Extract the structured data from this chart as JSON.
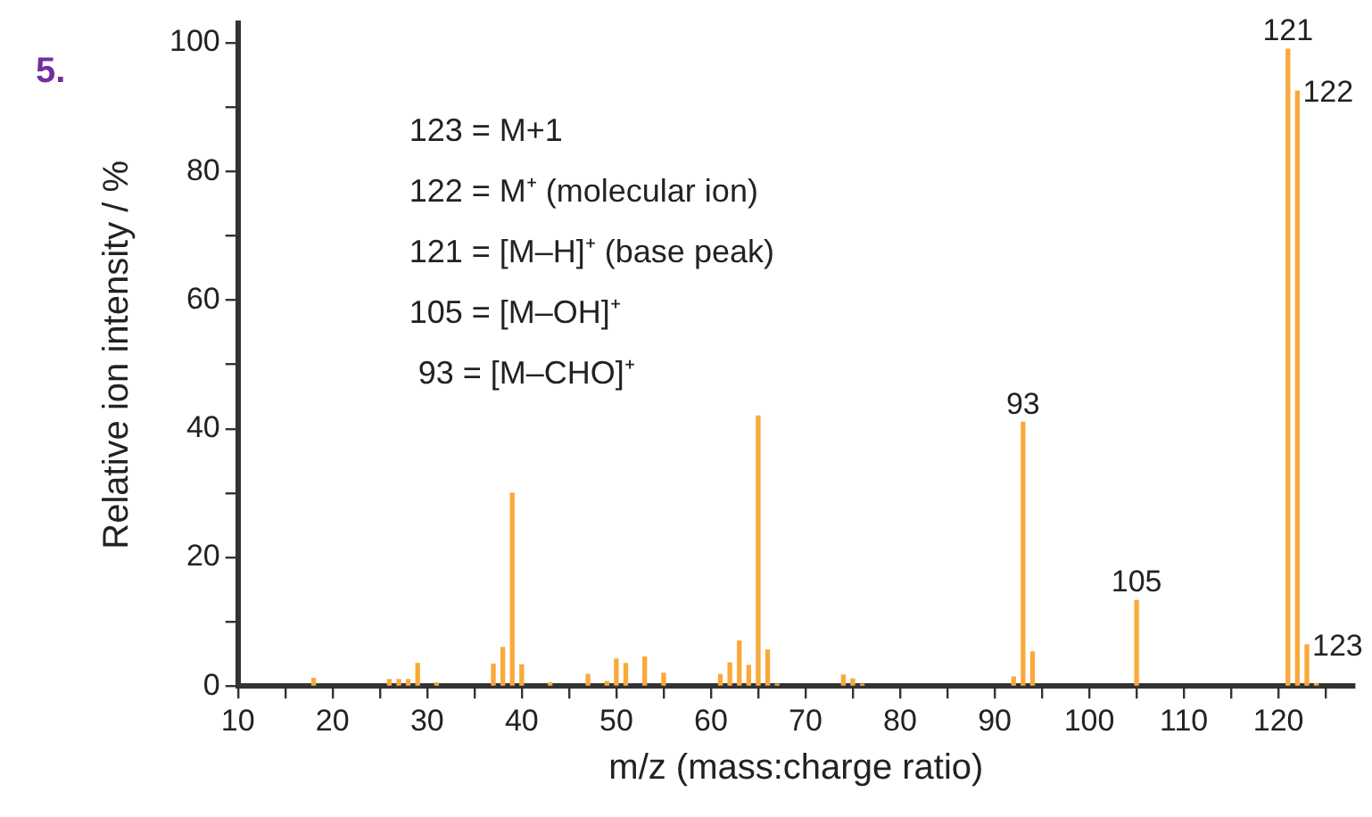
{
  "chart_data": {
    "type": "bar",
    "title": "5.",
    "xlabel": "m/z (mass:charge ratio)",
    "ylabel": "Relative ion intensity / %",
    "x": [
      18,
      26,
      27,
      28,
      29,
      31,
      37,
      38,
      39,
      40,
      43,
      47,
      49,
      50,
      51,
      53,
      55,
      61,
      62,
      63,
      64,
      65,
      66,
      67,
      74,
      75,
      76,
      92,
      93,
      94,
      105,
      121,
      122,
      123,
      124
    ],
    "values": [
      1.2,
      1,
      1,
      1,
      3.5,
      0.5,
      3.4,
      6,
      30,
      3.3,
      0.5,
      1.8,
      0.7,
      4.2,
      3.5,
      4.5,
      2,
      1.8,
      3.6,
      7,
      3.2,
      42,
      5.6,
      0.3,
      1.7,
      1.1,
      0.3,
      1.4,
      41,
      5.3,
      13.3,
      99,
      92.5,
      6.4,
      0.4
    ],
    "color": "#f9a93a",
    "xlim": [
      10,
      128
    ],
    "xticks": [
      10,
      {
        "value": 15,
        "label": null
      },
      20,
      {
        "value": 25,
        "label": null
      },
      30,
      {
        "value": 35,
        "label": null
      },
      40,
      {
        "value": 45,
        "label": null
      },
      50,
      {
        "value": 55,
        "label": null
      },
      60,
      {
        "value": 65,
        "label": null
      },
      70,
      {
        "value": 75,
        "label": null
      },
      80,
      {
        "value": 85,
        "label": null
      },
      90,
      {
        "value": 95,
        "label": null
      },
      100,
      {
        "value": 105,
        "label": null
      },
      110,
      {
        "value": 115,
        "label": null
      },
      120,
      {
        "value": 125,
        "label": null
      }
    ],
    "ylim": [
      0,
      103
    ],
    "yticks": [
      0,
      {
        "value": 10,
        "label": null
      },
      20,
      {
        "value": 30,
        "label": null
      },
      40,
      {
        "value": 50,
        "label": null
      },
      60,
      {
        "value": 70,
        "label": null
      },
      80,
      {
        "value": 90,
        "label": null
      },
      100
    ],
    "grid": false,
    "legend": false,
    "annotations": [
      "123 = M+1",
      "122 = M⁺ (molecular ion)",
      "121 = [M–H]⁺ (base peak)",
      "105 = [M–OH]⁺",
      " 93 = [M–CHO]⁺",
      {
        "text": "93",
        "x": 93,
        "y": 41
      },
      {
        "text": "105",
        "x": 105,
        "y": 13.3
      },
      {
        "text": "121",
        "x": 121,
        "y": 99
      },
      {
        "text": "122",
        "x": 122,
        "y": 92.5
      },
      {
        "text": "123",
        "x": 123,
        "y": 6.4
      }
    ]
  }
}
